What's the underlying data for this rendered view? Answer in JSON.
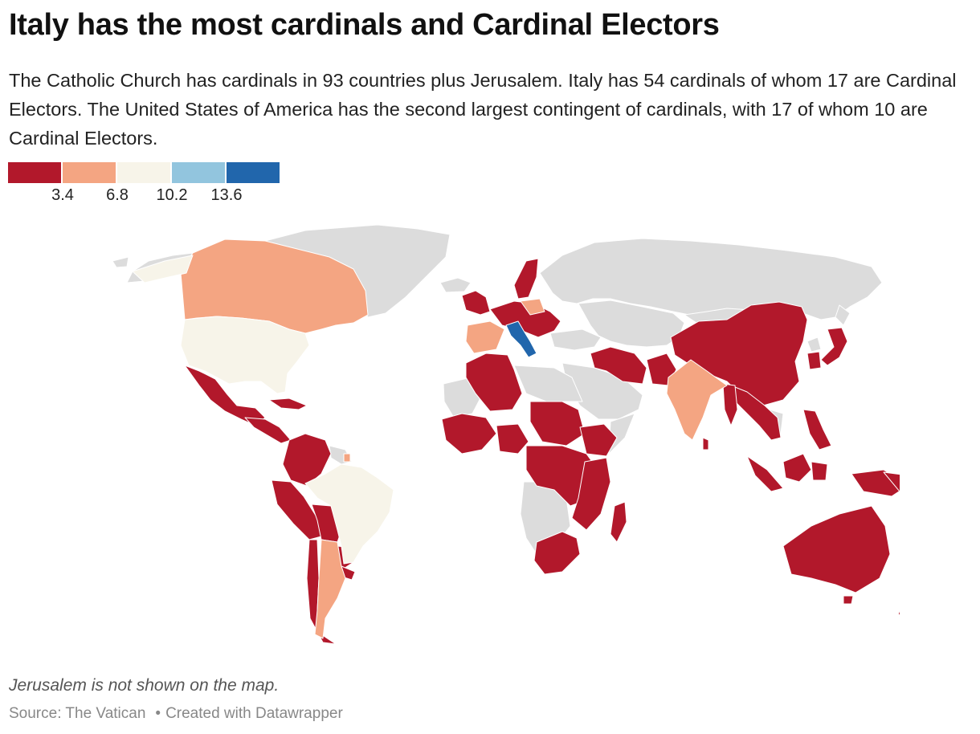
{
  "header": {
    "title": "Italy has the most cardinals and Cardinal Electors",
    "description": "The Catholic Church has cardinals in 93 countries plus Jerusalem. Italy has 54 cardinals of whom 17 are Cardinal Electors. The United States of America has the second largest contingent of cardinals, with 17 of whom 10 are Cardinal Electors."
  },
  "legend": {
    "colors": [
      "#b2182b",
      "#f4a582",
      "#f7f4e9",
      "#92c5de",
      "#2166ac"
    ],
    "ticks": [
      "3.4",
      "6.8",
      "10.2",
      "13.6"
    ]
  },
  "map": {
    "no_data_color": "#dcdcdc",
    "border_color": "#ffffff"
  },
  "notes": "Jerusalem is not shown on the map.",
  "footer": {
    "source": "Source: The Vatican",
    "credit": "Created with Datawrapper"
  }
}
